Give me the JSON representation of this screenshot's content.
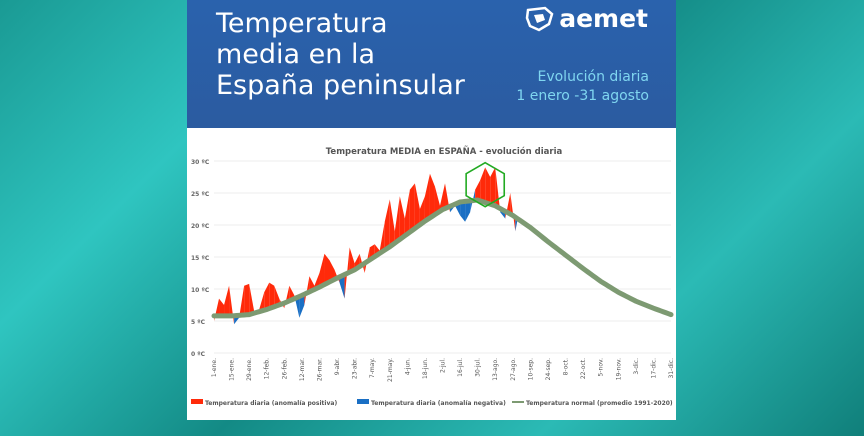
{
  "header": {
    "title_lines": [
      "Temperatura",
      "media en la",
      "España peninsular"
    ],
    "logo": "aemet",
    "subtitle_lines": [
      "Evolución diaria",
      "1 enero -31 agosto"
    ]
  },
  "colors": {
    "positive": "#ff2a0a",
    "negative": "#1a6fc4",
    "normal": "#7d9a72",
    "highlight": "#22aa22",
    "header": "#2a62ad"
  },
  "chart_data": {
    "type": "area",
    "title": "Temperatura MEDIA en ESPAÑA - evolución diaria",
    "ylim": [
      0,
      30
    ],
    "yticks": [
      "0 ºC",
      "5 ºC",
      "10 ºC",
      "15 ºC",
      "20 ºC",
      "25 ºC",
      "30 ºC"
    ],
    "ytick_values": [
      0,
      5,
      10,
      15,
      20,
      25,
      30
    ],
    "grid": true,
    "legend_placement": "bottom",
    "xticks": [
      "1-ene.",
      "15-ene.",
      "29-ene.",
      "12-feb.",
      "26-feb.",
      "12-mar.",
      "26-mar.",
      "9-abr.",
      "23-abr.",
      "7-may.",
      "21-may.",
      "4-jun.",
      "18-jun.",
      "2-jul.",
      "16-jul.",
      "30-jul.",
      "13-ago.",
      "27-ago.",
      "10-sep.",
      "24-sep.",
      "8-oct.",
      "22-oct.",
      "5-nov.",
      "19-nov.",
      "3-dic.",
      "17-dic.",
      "31-dic."
    ],
    "xtick_days": [
      1,
      15,
      29,
      43,
      57,
      71,
      85,
      99,
      113,
      127,
      141,
      155,
      169,
      183,
      197,
      211,
      225,
      239,
      253,
      267,
      281,
      295,
      309,
      323,
      337,
      351,
      365
    ],
    "normal_at_ticks": [
      5.8,
      5.8,
      6.0,
      6.8,
      7.8,
      9.0,
      10.3,
      11.7,
      13.0,
      14.8,
      16.6,
      18.6,
      20.6,
      22.4,
      23.6,
      23.9,
      23.0,
      21.5,
      19.6,
      17.4,
      15.3,
      13.2,
      11.2,
      9.5,
      8.1,
      7.0,
      6.0
    ],
    "daily_days": [
      1,
      5,
      9,
      13,
      17,
      21,
      25,
      29,
      33,
      37,
      41,
      45,
      49,
      53,
      57,
      61,
      65,
      69,
      73,
      77,
      81,
      85,
      89,
      93,
      97,
      101,
      105,
      109,
      113,
      117,
      121,
      125,
      129,
      133,
      137,
      141,
      145,
      149,
      153,
      157,
      161,
      165,
      169,
      173,
      177,
      181,
      185,
      189,
      193,
      197,
      201,
      205,
      209,
      213,
      217,
      221,
      225,
      229,
      233,
      237,
      241,
      243
    ],
    "daily_temp": [
      5.0,
      8.5,
      7.5,
      10.5,
      4.5,
      5.5,
      10.5,
      10.8,
      6.5,
      6.8,
      9.5,
      11.0,
      10.5,
      8.5,
      7.0,
      10.5,
      9.0,
      5.5,
      7.5,
      12.0,
      10.5,
      12.5,
      15.5,
      14.5,
      13.0,
      11.0,
      8.5,
      16.5,
      14.0,
      15.5,
      12.5,
      16.5,
      17.0,
      16.0,
      20.5,
      24.0,
      19.0,
      24.5,
      21.0,
      25.5,
      26.5,
      22.5,
      24.5,
      28.0,
      26.0,
      23.0,
      26.5,
      22.0,
      23.0,
      21.5,
      20.5,
      22.0,
      25.5,
      27.0,
      29.0,
      27.5,
      29.0,
      22.0,
      21.0,
      25.0,
      19.0,
      21.0
    ],
    "legend": [
      "Temperatura diaria (anomalía positiva)",
      "Temperatura diaria (anomalía negativa)",
      "Temperatura normal (promedio 1991-2020)"
    ],
    "annotation": "hexagon highlighting early-August peak"
  }
}
